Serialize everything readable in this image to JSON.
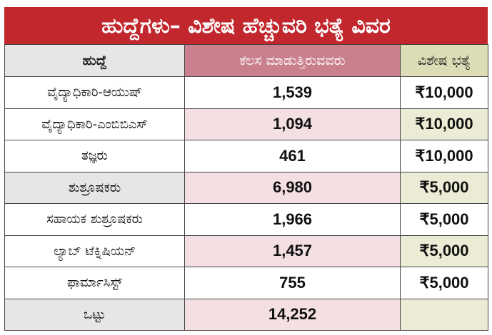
{
  "title": "ಹುದ್ದೆಗಳು– ವಿಶೇಷ ಹೆಚ್ಚುವರಿ ಭತ್ಯೆ ವಿವರ",
  "headers": {
    "post": "ಹುದ್ದೆ",
    "working": "ಕೆಲಸ ಮಾಡುತ್ತಿರುವವರು",
    "allowance": "ವಿಶೇಷ ಭತ್ಯೆ"
  },
  "rows": [
    {
      "post": "ವೈದ್ಯಾಧಿಕಾರಿ-ಆಯುಷ್",
      "working": "1,539",
      "allowance": "₹10,000"
    },
    {
      "post": "ವೈದ್ಯಾಧಿಕಾರಿ-ಎಂಬಿಬಿಎಸ್",
      "working": "1,094",
      "allowance": "₹10,000"
    },
    {
      "post": "ತಜ್ಞರು",
      "working": "461",
      "allowance": "₹10,000"
    },
    {
      "post": "ಶುಶ್ರೂಷಕರು",
      "working": "6,980",
      "allowance": "₹5,000"
    },
    {
      "post": "ಸಹಾಯಕ ಶುಶ್ರೂಷಕರು",
      "working": "1,966",
      "allowance": "₹5,000"
    },
    {
      "post": "ಲ್ಯಾಬ್ ಟೆಕ್ನಿಷಿಯನ್",
      "working": "1,457",
      "allowance": "₹5,000"
    },
    {
      "post": "ಫಾರ್ಮಾಸಿಸ್ಟ್",
      "working": "755",
      "allowance": "₹5,000"
    }
  ],
  "total": {
    "label": "ಒಟ್ಟು",
    "working": "14,252",
    "allowance": ""
  },
  "colors": {
    "title_bg": "#c1272d",
    "col2_header": "#c97f8c",
    "col3_header": "#dcdcb6"
  }
}
